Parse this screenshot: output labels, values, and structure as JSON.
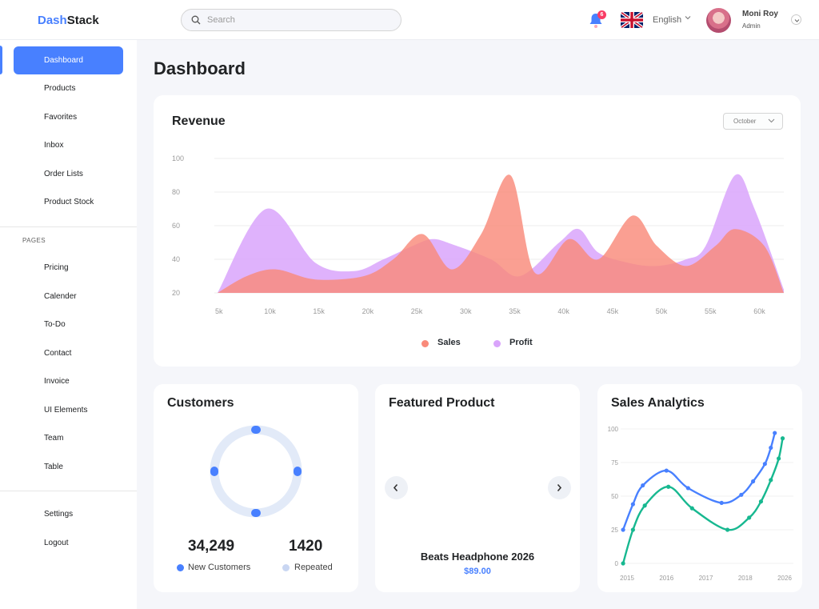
{
  "app": {
    "logo_prefix": "Dash",
    "logo_suffix": "Stack"
  },
  "header": {
    "search_placeholder": "Search",
    "notification_count": "6",
    "language": "English",
    "user_name": "Moni Roy",
    "user_role": "Admin"
  },
  "sidebar": {
    "main_items": [
      {
        "label": "Dashboard",
        "active": true
      },
      {
        "label": "Products"
      },
      {
        "label": "Favorites"
      },
      {
        "label": "Inbox"
      },
      {
        "label": "Order Lists"
      },
      {
        "label": "Product Stock"
      }
    ],
    "pages_heading": "PAGES",
    "page_items": [
      {
        "label": "Pricing"
      },
      {
        "label": "Calender"
      },
      {
        "label": "To-Do"
      },
      {
        "label": "Contact"
      },
      {
        "label": "Invoice"
      },
      {
        "label": "UI Elements"
      },
      {
        "label": "Team"
      },
      {
        "label": "Table"
      }
    ],
    "bottom_items": [
      {
        "label": "Settings"
      },
      {
        "label": "Logout"
      }
    ]
  },
  "page_title": "Dashboard",
  "revenue": {
    "title": "Revenue",
    "month_select": "October",
    "legend": [
      {
        "name": "Sales",
        "color": "#f98a7a"
      },
      {
        "name": "Profit",
        "color": "#d9a4fb"
      }
    ]
  },
  "customers": {
    "title": "Customers",
    "new_value": "34,249",
    "new_label": "New Customers",
    "repeated_value": "1420",
    "repeated_label": "Repeated",
    "colors": {
      "new": "#4880ff",
      "repeated": "#e2eaf8"
    }
  },
  "featured": {
    "title": "Featured Product",
    "product_name": "Beats Headphone 2026",
    "price": "$89.00"
  },
  "sales_analytics": {
    "title": "Sales Analytics"
  },
  "chart_data": [
    {
      "type": "area",
      "title": "Revenue",
      "x_ticks": [
        "5k",
        "10k",
        "15k",
        "20k",
        "25k",
        "30k",
        "35k",
        "40k",
        "45k",
        "50k",
        "55k",
        "60k"
      ],
      "y_ticks": [
        20,
        40,
        60,
        80,
        100
      ],
      "ylim": [
        20,
        100
      ],
      "xlim": [
        5,
        63
      ],
      "grid": true,
      "legend_position": "bottom",
      "series": [
        {
          "name": "Profit",
          "color": "#d9a4fb",
          "x": [
            5,
            10,
            15,
            19,
            22,
            25,
            27,
            29,
            33,
            36,
            40,
            42,
            44,
            47,
            50,
            53,
            55,
            58,
            60,
            63
          ],
          "y": [
            20,
            70,
            38,
            33,
            40,
            48,
            52,
            49,
            40,
            30,
            50,
            58,
            44,
            38,
            36,
            40,
            48,
            90,
            70,
            22
          ]
        },
        {
          "name": "Sales",
          "color": "#f98a7a",
          "x": [
            5,
            8,
            11,
            15,
            20,
            23,
            26,
            29,
            32,
            35,
            37.5,
            41,
            44,
            47.5,
            50,
            53,
            56,
            58,
            61,
            63
          ],
          "y": [
            20,
            30,
            34,
            28,
            30,
            40,
            55,
            34,
            55,
            90,
            32,
            52,
            40,
            66,
            48,
            36,
            48,
            58,
            48,
            20
          ]
        }
      ]
    },
    {
      "type": "pie",
      "title": "Customers",
      "series": [
        {
          "name": "New Customers",
          "values": [
            34249
          ],
          "color": "#4880ff"
        },
        {
          "name": "Repeated",
          "values": [
            1420
          ],
          "color": "#e2eaf8"
        }
      ]
    },
    {
      "type": "line",
      "title": "Sales Analytics",
      "x_ticks": [
        "2015",
        "2016",
        "2017",
        "2018",
        "2026"
      ],
      "y_ticks": [
        0,
        25,
        50,
        75,
        100
      ],
      "ylim": [
        0,
        100
      ],
      "xlim": [
        0,
        4
      ],
      "grid": true,
      "series": [
        {
          "color": "#4880ff",
          "x": [
            -0.1,
            0.15,
            0.4,
            1.0,
            1.55,
            2.4,
            2.9,
            3.2,
            3.5,
            3.65,
            3.75
          ],
          "y": [
            25,
            44,
            58,
            69,
            56,
            45,
            51,
            61,
            74,
            86,
            97
          ]
        },
        {
          "color": "#17b890",
          "x": [
            -0.1,
            0.15,
            0.45,
            1.05,
            1.65,
            2.55,
            3.1,
            3.4,
            3.65,
            3.85,
            3.95
          ],
          "y": [
            0,
            25,
            43,
            57,
            41,
            25,
            34,
            46,
            62,
            78,
            93
          ]
        }
      ]
    }
  ]
}
